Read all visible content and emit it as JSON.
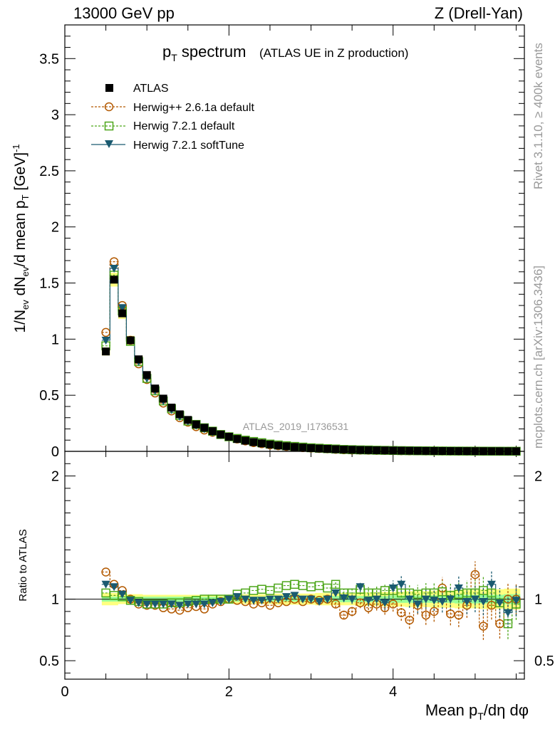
{
  "header": {
    "left": "13000 GeV pp",
    "right": "Z (Drell-Yan)"
  },
  "side_labels": {
    "rivet": "Rivet 3.1.10, ≥ 400k events",
    "mcplots": "mcplots.cern.ch [arXiv:1306.3436]"
  },
  "colors": {
    "atlas": "#000000",
    "herwig_old": "#b35900",
    "herwig_default": "#4da61a",
    "herwig_soft": "#1a5a70",
    "band_outer": "#ffff80",
    "band_inner": "#99ff99"
  },
  "chart_data": [
    {
      "type": "scatter",
      "panel": "main",
      "title": "p_T spectrum",
      "title_main": "p",
      "title_sub": "T",
      "title_rest": " spectrum",
      "title_note": "(ATLAS UE in Z production)",
      "watermark": "ATLAS_2019_I1736531",
      "ylabel": "1/N_ev dN_ev/d mean p_T [GeV]^-1",
      "xlim": [
        0,
        5.6
      ],
      "ylim": [
        0,
        3.8
      ],
      "y_ticks": [
        0,
        0.5,
        1,
        1.5,
        2,
        2.5,
        3,
        3.5
      ],
      "y_tick_labels": [
        "0",
        "0.5",
        "1",
        "1.5",
        "2",
        "2.5",
        "3",
        "3.5"
      ],
      "legend_position": "top-left",
      "x": [
        0.5,
        0.6,
        0.7,
        0.8,
        0.9,
        1.0,
        1.1,
        1.2,
        1.3,
        1.4,
        1.5,
        1.6,
        1.7,
        1.8,
        1.9,
        2.0,
        2.1,
        2.2,
        2.3,
        2.4,
        2.5,
        2.6,
        2.7,
        2.8,
        2.9,
        3.0,
        3.1,
        3.2,
        3.3,
        3.4,
        3.5,
        3.6,
        3.7,
        3.8,
        3.9,
        4.0,
        4.1,
        4.2,
        4.3,
        4.4,
        4.5,
        4.6,
        4.7,
        4.8,
        4.9,
        5.0,
        5.1,
        5.2,
        5.3,
        5.4,
        5.5
      ],
      "series": [
        {
          "name": "ATLAS",
          "marker": "square",
          "values": [
            0.89,
            1.53,
            1.23,
            0.99,
            0.82,
            0.68,
            0.56,
            0.47,
            0.39,
            0.33,
            0.28,
            0.24,
            0.21,
            0.18,
            0.15,
            0.13,
            0.11,
            0.095,
            0.082,
            0.071,
            0.061,
            0.052,
            0.045,
            0.039,
            0.034,
            0.029,
            0.025,
            0.022,
            0.019,
            0.016,
            0.014,
            0.012,
            0.011,
            0.0095,
            0.0083,
            0.0072,
            0.0063,
            0.0055,
            0.0048,
            0.0042,
            0.0037,
            0.0032,
            0.0028,
            0.0025,
            0.0022,
            0.0019,
            0.0017,
            0.0015,
            0.0013,
            0.0011,
            0.001
          ]
        },
        {
          "name": "Herwig++ 2.6.1a default",
          "marker": "circle",
          "values": [
            1.06,
            1.69,
            1.3,
            0.99,
            0.78,
            0.64,
            0.52,
            0.43,
            0.36,
            0.3,
            0.26,
            0.22,
            0.19,
            0.17,
            0.15,
            0.13,
            0.11,
            0.093,
            0.078,
            0.068,
            0.057,
            0.05,
            0.044,
            0.038,
            0.033,
            0.029,
            0.025,
            0.022,
            0.018,
            0.014,
            0.012,
            0.011,
            0.01,
            0.009,
            0.008,
            0.007,
            0.0056,
            0.0046,
            0.0046,
            0.0037,
            0.0033,
            0.0035,
            0.0025,
            0.0022,
            0.0021,
            0.002,
            0.0013,
            0.0015,
            0.0011,
            0.0009,
            0.001
          ]
        },
        {
          "name": "Herwig 7.2.1 default",
          "marker": "square-open",
          "values": [
            0.94,
            1.57,
            1.25,
            0.98,
            0.8,
            0.65,
            0.54,
            0.45,
            0.38,
            0.32,
            0.27,
            0.24,
            0.21,
            0.18,
            0.15,
            0.13,
            0.115,
            0.1,
            0.088,
            0.077,
            0.065,
            0.057,
            0.05,
            0.044,
            0.038,
            0.032,
            0.028,
            0.024,
            0.021,
            0.017,
            0.015,
            0.013,
            0.012,
            0.01,
            0.0089,
            0.0077,
            0.0066,
            0.0058,
            0.005,
            0.0044,
            0.0039,
            0.0034,
            0.0029,
            0.0026,
            0.0023,
            0.002,
            0.0018,
            0.0016,
            0.0014,
            0.0011,
            0.001
          ]
        },
        {
          "name": "Herwig 7.2.1 softTune",
          "marker": "triangle-down",
          "values": [
            0.99,
            1.63,
            1.28,
            0.99,
            0.8,
            0.65,
            0.54,
            0.45,
            0.37,
            0.31,
            0.27,
            0.23,
            0.2,
            0.17,
            0.15,
            0.13,
            0.11,
            0.096,
            0.083,
            0.072,
            0.062,
            0.053,
            0.046,
            0.04,
            0.034,
            0.029,
            0.025,
            0.022,
            0.019,
            0.016,
            0.014,
            0.012,
            0.011,
            0.0095,
            0.0083,
            0.0072,
            0.0063,
            0.0055,
            0.0048,
            0.0042,
            0.0037,
            0.0032,
            0.0028,
            0.0025,
            0.0022,
            0.0019,
            0.0017,
            0.0015,
            0.0013,
            0.0011,
            0.001
          ]
        }
      ]
    },
    {
      "type": "scatter",
      "panel": "ratio",
      "ylabel": "Ratio to ATLAS",
      "xlabel": "Mean p_T/dη dφ",
      "xlabel_a": "Mean p",
      "xlabel_sub": "T",
      "xlabel_b": "/dη dφ",
      "xlim": [
        0,
        5.6
      ],
      "ylim": [
        0.35,
        2.2
      ],
      "x_ticks": [
        0,
        2,
        4
      ],
      "x_tick_labels": [
        "0",
        "2",
        "4"
      ],
      "y_ticks": [
        0.5,
        1,
        2
      ],
      "y_tick_labels": [
        "0.5",
        "1",
        "2"
      ],
      "x": [
        0.5,
        0.6,
        0.7,
        0.8,
        0.9,
        1.0,
        1.1,
        1.2,
        1.3,
        1.4,
        1.5,
        1.6,
        1.7,
        1.8,
        1.9,
        2.0,
        2.1,
        2.2,
        2.3,
        2.4,
        2.5,
        2.6,
        2.7,
        2.8,
        2.9,
        3.0,
        3.1,
        3.2,
        3.3,
        3.4,
        3.5,
        3.6,
        3.7,
        3.8,
        3.9,
        4.0,
        4.1,
        4.2,
        4.3,
        4.4,
        4.5,
        4.6,
        4.7,
        4.8,
        4.9,
        5.0,
        5.1,
        5.2,
        5.3,
        5.4,
        5.5
      ],
      "band_outer": [
        0.05,
        0.05,
        0.04,
        0.04,
        0.04,
        0.035,
        0.035,
        0.035,
        0.035,
        0.035,
        0.035,
        0.035,
        0.035,
        0.035,
        0.035,
        0.035,
        0.04,
        0.04,
        0.04,
        0.04,
        0.04,
        0.045,
        0.045,
        0.045,
        0.045,
        0.045,
        0.05,
        0.05,
        0.05,
        0.05,
        0.05,
        0.055,
        0.055,
        0.055,
        0.06,
        0.06,
        0.06,
        0.065,
        0.065,
        0.065,
        0.07,
        0.07,
        0.07,
        0.075,
        0.075,
        0.075,
        0.08,
        0.08,
        0.08,
        0.085,
        0.085
      ],
      "band_inner": [
        0.02,
        0.02,
        0.02,
        0.02,
        0.02,
        0.02,
        0.02,
        0.02,
        0.02,
        0.02,
        0.02,
        0.02,
        0.02,
        0.02,
        0.02,
        0.02,
        0.02,
        0.02,
        0.02,
        0.02,
        0.02,
        0.02,
        0.02,
        0.02,
        0.02,
        0.02,
        0.02,
        0.025,
        0.025,
        0.025,
        0.025,
        0.025,
        0.025,
        0.025,
        0.025,
        0.03,
        0.03,
        0.03,
        0.03,
        0.03,
        0.03,
        0.03,
        0.03,
        0.035,
        0.035,
        0.035,
        0.035,
        0.035,
        0.035,
        0.04,
        0.04
      ],
      "series": [
        {
          "name": "Herwig++ 2.6.1a default",
          "marker": "circle",
          "values": [
            1.22,
            1.12,
            1.07,
            1.0,
            0.96,
            0.95,
            0.95,
            0.93,
            0.92,
            0.91,
            0.93,
            0.94,
            0.92,
            0.96,
            0.98,
            1.0,
            0.99,
            0.98,
            0.96,
            0.97,
            0.95,
            0.97,
            0.98,
            1.0,
            0.98,
            1.0,
            0.99,
            1.0,
            0.96,
            0.87,
            0.9,
            0.97,
            0.93,
            0.96,
            0.93,
            0.96,
            0.89,
            0.83,
            0.95,
            0.87,
            0.9,
            1.09,
            0.88,
            0.87,
            0.95,
            1.2,
            0.78,
            0.95,
            0.8,
            1.0,
            1.0
          ]
        },
        {
          "name": "Herwig 7.2.1 default",
          "marker": "square-open",
          "values": [
            1.05,
            1.03,
            1.02,
            0.99,
            0.98,
            0.96,
            0.96,
            0.96,
            0.97,
            0.97,
            0.98,
            0.99,
            1.0,
            1.0,
            1.0,
            1.0,
            1.04,
            1.05,
            1.07,
            1.08,
            1.07,
            1.09,
            1.11,
            1.12,
            1.11,
            1.1,
            1.11,
            1.09,
            1.12,
            1.05,
            1.05,
            1.08,
            1.05,
            1.05,
            1.07,
            1.07,
            1.05,
            1.05,
            1.04,
            1.05,
            1.05,
            1.06,
            1.03,
            1.04,
            1.05,
            1.05,
            1.07,
            1.05,
            0.97,
            0.8,
            0.96
          ]
        },
        {
          "name": "Herwig 7.2.1 softTune",
          "marker": "triangle-down",
          "values": [
            1.12,
            1.1,
            1.04,
            0.99,
            0.97,
            0.96,
            0.96,
            0.96,
            0.96,
            0.95,
            0.96,
            0.96,
            0.96,
            0.97,
            0.98,
            1.0,
            1.02,
            1.0,
            0.99,
            0.99,
            1.0,
            1.0,
            1.02,
            1.03,
            1.0,
            1.0,
            0.98,
            1.0,
            1.05,
            1.01,
            1.0,
            1.1,
            0.99,
            1.0,
            0.97,
            1.09,
            1.12,
            1.0,
            0.96,
            1.0,
            0.99,
            0.98,
            1.0,
            1.09,
            0.98,
            1.0,
            0.98,
            1.12,
            0.97,
            0.89,
            0.99
          ]
        }
      ]
    }
  ]
}
